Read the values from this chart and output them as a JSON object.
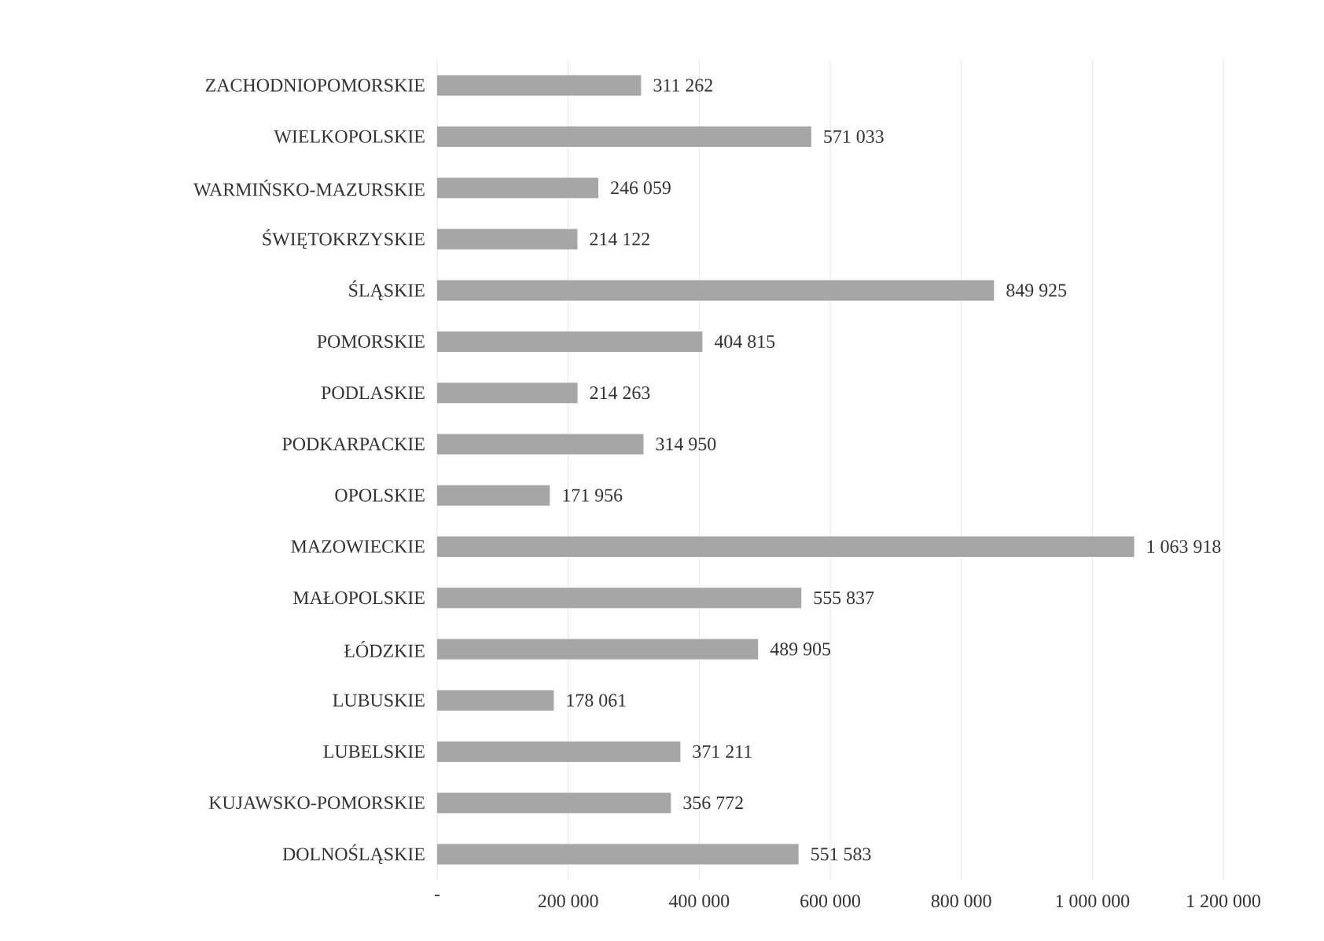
{
  "chart_data": {
    "type": "bar",
    "orientation": "horizontal",
    "categories": [
      "ZACHODNIOPOMORSKIE",
      "WIELKOPOLSKIE",
      "WARMIŃSKO-MAZURSKIE",
      "ŚWIĘTOKRZYSKIE",
      "ŚLĄSKIE",
      "POMORSKIE",
      "PODLASKIE",
      "PODKARPACKIE",
      "OPOLSKIE",
      "MAZOWIECKIE",
      "MAŁOPOLSKIE",
      "ŁÓDZKIE",
      "LUBUSKIE",
      "LUBELSKIE",
      "KUJAWSKO-POMORSKIE",
      "DOLNOŚLĄSKIE"
    ],
    "values": [
      311262,
      571033,
      246059,
      214122,
      849925,
      404815,
      214263,
      314950,
      171956,
      1063918,
      555837,
      489905,
      178061,
      371211,
      356772,
      551583
    ],
    "value_labels": [
      "311 262",
      "571 033",
      "246 059",
      "214 122",
      "849 925",
      "404 815",
      "214 263",
      "314 950",
      "171 956",
      "1 063 918",
      "555 837",
      "489 905",
      "178 061",
      "371 211",
      "356 772",
      "551 583"
    ],
    "color": "#a6a6a6",
    "xlim": [
      0,
      1200000
    ],
    "xticks": [
      {
        "value": 0,
        "label": "-"
      },
      {
        "value": 200000,
        "label": "200 000"
      },
      {
        "value": 400000,
        "label": "400 000"
      },
      {
        "value": 600000,
        "label": "600 000"
      },
      {
        "value": 800000,
        "label": "800 000"
      },
      {
        "value": 1000000,
        "label": "1 000 000"
      },
      {
        "value": 1200000,
        "label": "1 200 000"
      }
    ],
    "grid": "x"
  }
}
